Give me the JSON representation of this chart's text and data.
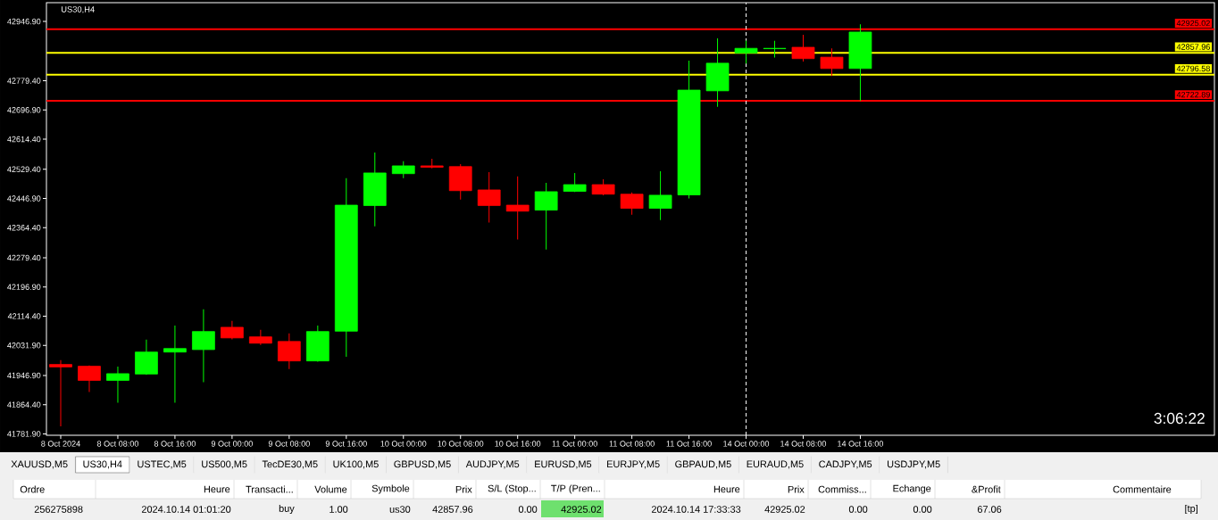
{
  "chart_data": {
    "type": "candlestick",
    "title": "US30,H4",
    "categories": [
      "8 Oct 2024",
      null,
      "8 Oct 08:00",
      null,
      "8 Oct 16:00",
      null,
      "9 Oct 00:00",
      null,
      "9 Oct 08:00",
      null,
      "9 Oct 16:00",
      null,
      "10 Oct 00:00",
      null,
      "10 Oct 08:00",
      null,
      "10 Oct 16:00",
      null,
      "11 Oct 00:00",
      null,
      "11 Oct 08:00",
      null,
      "11 Oct 16:00",
      null,
      "14 Oct 00:00",
      null,
      "14 Oct 08:00",
      null,
      "14 Oct 16:00"
    ],
    "ohlc": [
      [
        41978,
        41990,
        41803,
        41971
      ],
      [
        41973,
        41975,
        41900,
        41933
      ],
      [
        41933,
        41972,
        41870,
        41952
      ],
      [
        41951,
        42048,
        41949,
        42013
      ],
      [
        42013,
        42088,
        41870,
        42023
      ],
      [
        42020,
        42134,
        41928,
        42071
      ],
      [
        42083,
        42101,
        42049,
        42053
      ],
      [
        42056,
        42076,
        42033,
        42038
      ],
      [
        42043,
        42066,
        41965,
        41988
      ],
      [
        41988,
        42088,
        41986,
        42071
      ],
      [
        42072,
        42504,
        42000,
        42428
      ],
      [
        42427,
        42577,
        42368,
        42519
      ],
      [
        42517,
        42552,
        42504,
        42539
      ],
      [
        42539,
        42559,
        42532,
        42535
      ],
      [
        42537,
        42544,
        42444,
        42469
      ],
      [
        42471,
        42521,
        42379,
        42427
      ],
      [
        42428,
        42509,
        42331,
        42411
      ],
      [
        42414,
        42491,
        42303,
        42466
      ],
      [
        42467,
        42519,
        42465,
        42486
      ],
      [
        42486,
        42501,
        42456,
        42459
      ],
      [
        42459,
        42464,
        42401,
        42419
      ],
      [
        42419,
        42524,
        42386,
        42456
      ],
      [
        42457,
        42836,
        42447,
        42753
      ],
      [
        42751,
        42899,
        42706,
        42829
      ],
      [
        42858,
        42893,
        42828,
        42871
      ],
      [
        42870,
        42892,
        42845,
        42871
      ],
      [
        42874,
        42909,
        42834,
        42842
      ],
      [
        42846,
        42871,
        42793,
        42814
      ],
      [
        42814,
        42939,
        42723,
        42917
      ]
    ],
    "colors": [
      "#ff0000",
      "#ff0000",
      "#00ff00",
      "#00ff00",
      "#00ff00",
      "#00ff00",
      "#ff0000",
      "#ff0000",
      "#ff0000",
      "#00ff00",
      "#00ff00",
      "#00ff00",
      "#00ff00",
      "#ff0000",
      "#ff0000",
      "#ff0000",
      "#ff0000",
      "#00ff00",
      "#00ff00",
      "#ff0000",
      "#ff0000",
      "#00ff00",
      "#00ff00",
      "#00ff00",
      "#00ff00",
      "#00ff00",
      "#ff0000",
      "#ff0000",
      "#00ff00"
    ],
    "ylim": [
      41778,
      43000
    ],
    "yticks": [
      {
        "value": 41781.9,
        "label": "41781.90"
      },
      {
        "value": 41864.4,
        "label": "41864.40"
      },
      {
        "value": 41946.9,
        "label": "41946.90"
      },
      {
        "value": 42031.9,
        "label": "42031.90"
      },
      {
        "value": 42114.4,
        "label": "42114.40"
      },
      {
        "value": 42196.9,
        "label": "42196.90"
      },
      {
        "value": 42279.4,
        "label": "42279.40"
      },
      {
        "value": 42364.4,
        "label": "42364.40"
      },
      {
        "value": 42446.9,
        "label": "42446.90"
      },
      {
        "value": 42529.4,
        "label": "42529.40"
      },
      {
        "value": 42614.4,
        "label": "42614.40"
      },
      {
        "value": 42696.9,
        "label": "42696.90"
      },
      {
        "value": 42779.4,
        "label": "42779.40"
      },
      {
        "value": 42946.9,
        "label": "42946.90"
      }
    ],
    "ref_lines": [
      {
        "axis": "y",
        "value": 42925.02,
        "label": "42925.02",
        "color": "#ff0000"
      },
      {
        "axis": "y",
        "value": 42857.96,
        "label": "42857.96",
        "color": "#ffff00"
      },
      {
        "axis": "y",
        "value": 42796.58,
        "label": "42796.58",
        "color": "#ffff00"
      },
      {
        "axis": "y",
        "value": 42722.89,
        "label": "42722.89",
        "color": "#ff0000"
      },
      {
        "axis": "x",
        "value": "14 Oct 00:00",
        "color": "#ffffff",
        "line_style": "dashed"
      }
    ],
    "annotations": [
      "3:06:22",
      "XAUUSD,M5",
      "US30,H4",
      "USTEC,M5",
      "US500,M5",
      "TecDE30,M5",
      "UK100,M5",
      "GBPUSD,M5",
      "AUDJPY,M5",
      "EURUSD,M5",
      "EURJPY,M5",
      "GBPAUD,M5",
      "EURAUD,M5",
      "CADJPY,M5",
      "USDJPY,M5",
      "Ordre",
      "Heure",
      "Transacti...",
      "Volume",
      "Symbole",
      "Prix",
      "S/L (Stop...",
      "T/P (Pren...",
      "Heure",
      "Prix",
      "Commiss...",
      "Echange",
      "&Profit",
      "Commentaire",
      "256275898",
      "2024.10.14 01:01:20",
      "buy",
      "1.00",
      "us30",
      "42857.96",
      "0.00",
      "42925.02",
      "2024.10.14 17:33:33",
      "42925.02",
      "0.00",
      "0.00",
      "67.06",
      "[tp]"
    ]
  }
}
